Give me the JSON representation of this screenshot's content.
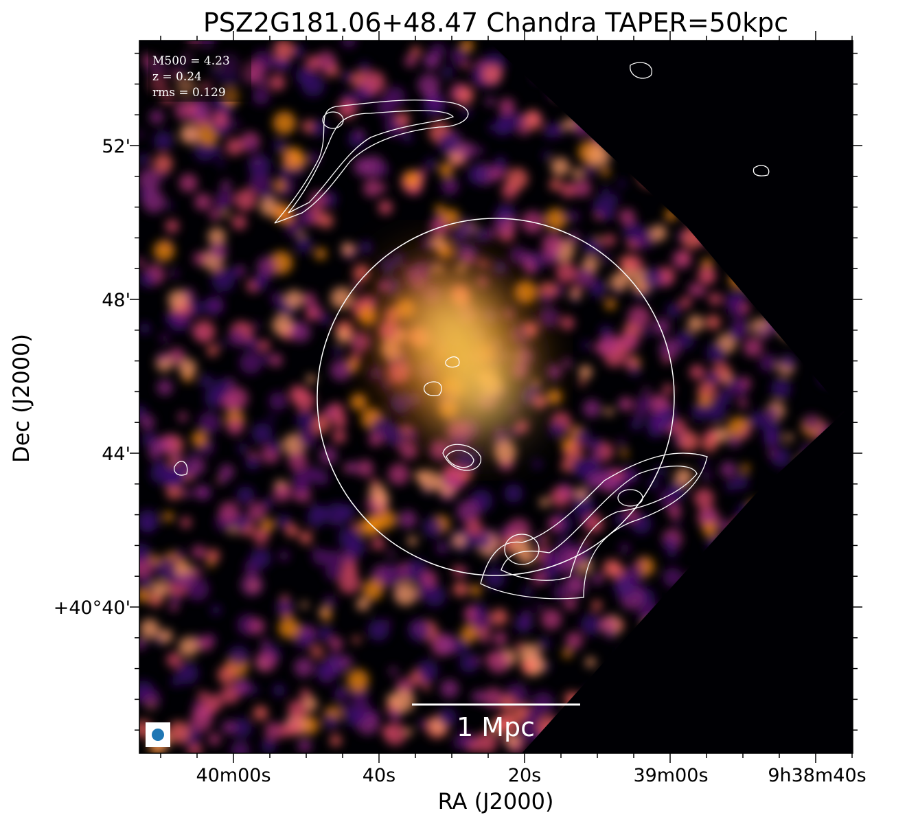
{
  "header": {
    "title": "PSZ2G181.06+48.47 Chandra TAPER=50kpc"
  },
  "info": [
    "M500 = 4.23",
    "z = 0.24",
    "rms = 0.129"
  ],
  "scale_bar": "1 Mpc",
  "x_axis": {
    "label": "RA (J2000)",
    "ticks": [
      "40m00s",
      "40s",
      "20s",
      "39m00s",
      "9h38m40s"
    ]
  },
  "y_axis": {
    "label": "Dec (J2000)",
    "ticks": [
      "52'",
      "48'",
      "44'",
      "+40°40'"
    ]
  }
}
